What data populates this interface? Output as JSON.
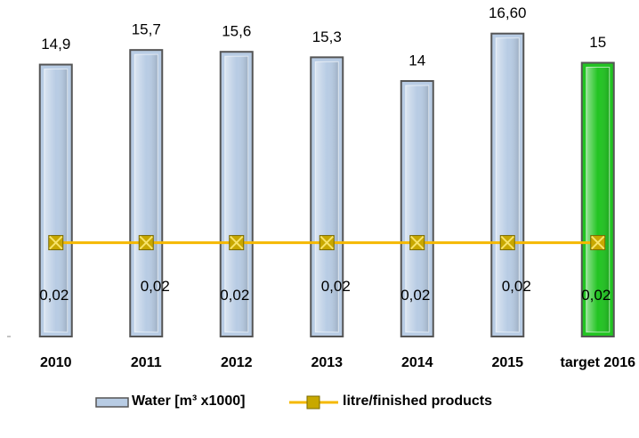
{
  "chart_data": {
    "type": "bar",
    "categories": [
      "2010",
      "2011",
      "2012",
      "2013",
      "2014",
      "2015",
      "target 2016"
    ],
    "ylim": [
      0,
      18
    ],
    "y2lim": [
      0,
      0.07
    ],
    "series": [
      {
        "name": "Water [m³ x1000]",
        "type": "bar",
        "color": "#b8cce4",
        "colors": [
          "#b8cce4",
          "#b8cce4",
          "#b8cce4",
          "#b8cce4",
          "#b8cce4",
          "#b8cce4",
          "#22c422"
        ],
        "values": [
          14.9,
          15.7,
          15.6,
          15.3,
          14,
          16.6,
          15
        ],
        "value_labels": [
          "14,9",
          "15,7",
          "15,6",
          "15,3",
          "14",
          "16,60",
          "15"
        ]
      },
      {
        "name": "litre/finished products",
        "type": "line",
        "axis": "y2",
        "color": "#f5b800",
        "values": [
          0.02,
          0.02,
          0.02,
          0.02,
          0.02,
          0.02,
          0.02
        ],
        "value_labels": [
          "0,02",
          "0,02",
          "0,02",
          "0,02",
          "0,02",
          "0,02",
          "0,02"
        ]
      }
    ]
  }
}
